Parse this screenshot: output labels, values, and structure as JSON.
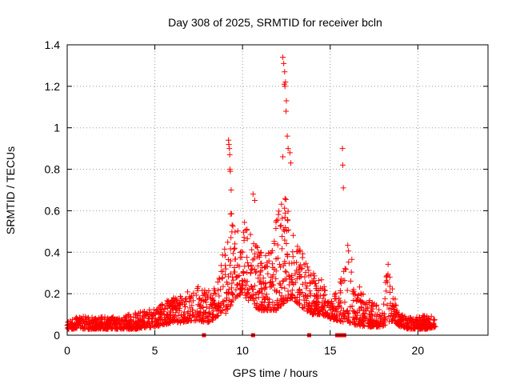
{
  "chart_data": {
    "type": "scatter",
    "title": "Day 308 of 2025, SRMTID for receiver bcln",
    "xlabel": "GPS time / hours",
    "ylabel": "SRMTID / TECUs",
    "xlim": [
      0,
      24
    ],
    "ylim": [
      0,
      1.4
    ],
    "xticks": [
      0,
      5,
      10,
      15,
      20
    ],
    "yticks": [
      0,
      0.2,
      0.4,
      0.6,
      0.8,
      1,
      1.2,
      1.4
    ],
    "ytick_labels": [
      "0",
      "0.2",
      "0.4",
      "0.6",
      "0.8",
      "1",
      "1.2",
      "1.4"
    ],
    "grid": true,
    "marker": "+",
    "color": "#ff0000",
    "envelope": {
      "description": "approximate typical (low) and upper (high) SRMTID envelope vs time; points scattered between",
      "x": [
        0.0,
        1.0,
        2.0,
        3.0,
        4.0,
        5.0,
        5.5,
        6.0,
        6.5,
        7.0,
        7.5,
        8.0,
        8.5,
        9.0,
        9.3,
        9.6,
        10.0,
        10.5,
        11.0,
        11.5,
        12.0,
        12.4,
        12.8,
        13.2,
        13.6,
        14.0,
        14.5,
        15.0,
        15.5,
        15.8,
        16.1,
        16.4,
        17.0,
        17.5,
        18.0,
        18.3,
        18.6,
        19.0,
        19.5,
        20.0,
        20.5,
        21.0
      ],
      "low": [
        0.03,
        0.03,
        0.03,
        0.03,
        0.03,
        0.04,
        0.05,
        0.06,
        0.06,
        0.07,
        0.07,
        0.06,
        0.08,
        0.1,
        0.14,
        0.18,
        0.2,
        0.15,
        0.12,
        0.12,
        0.12,
        0.16,
        0.18,
        0.15,
        0.12,
        0.1,
        0.1,
        0.08,
        0.07,
        0.06,
        0.06,
        0.05,
        0.04,
        0.04,
        0.04,
        0.06,
        0.07,
        0.04,
        0.03,
        0.03,
        0.03,
        0.04
      ],
      "high": [
        0.1,
        0.09,
        0.09,
        0.09,
        0.11,
        0.13,
        0.16,
        0.18,
        0.2,
        0.22,
        0.24,
        0.22,
        0.25,
        0.45,
        0.62,
        0.5,
        0.6,
        0.48,
        0.4,
        0.4,
        0.6,
        0.7,
        0.6,
        0.42,
        0.38,
        0.3,
        0.28,
        0.15,
        0.25,
        0.35,
        0.48,
        0.28,
        0.18,
        0.16,
        0.12,
        0.38,
        0.2,
        0.1,
        0.09,
        0.09,
        0.1,
        0.09
      ]
    },
    "spikes": [
      {
        "x": 9.2,
        "y": 0.94
      },
      {
        "x": 9.22,
        "y": 0.92
      },
      {
        "x": 9.25,
        "y": 0.9
      },
      {
        "x": 9.27,
        "y": 0.87
      },
      {
        "x": 9.28,
        "y": 0.8
      },
      {
        "x": 9.3,
        "y": 0.79
      },
      {
        "x": 9.35,
        "y": 0.7
      },
      {
        "x": 10.6,
        "y": 0.68
      },
      {
        "x": 10.7,
        "y": 0.65
      },
      {
        "x": 12.3,
        "y": 1.34
      },
      {
        "x": 12.35,
        "y": 1.31
      },
      {
        "x": 12.4,
        "y": 1.27
      },
      {
        "x": 12.38,
        "y": 1.21
      },
      {
        "x": 12.42,
        "y": 1.2
      },
      {
        "x": 12.45,
        "y": 1.22
      },
      {
        "x": 12.5,
        "y": 1.13
      },
      {
        "x": 12.48,
        "y": 1.08
      },
      {
        "x": 12.55,
        "y": 0.96
      },
      {
        "x": 12.6,
        "y": 0.9
      },
      {
        "x": 12.7,
        "y": 0.88
      },
      {
        "x": 12.3,
        "y": 0.86
      },
      {
        "x": 12.75,
        "y": 0.83
      },
      {
        "x": 15.7,
        "y": 0.9
      },
      {
        "x": 15.72,
        "y": 0.82
      },
      {
        "x": 15.75,
        "y": 0.71
      }
    ],
    "zero_markers": [
      7.8,
      10.6,
      13.8,
      15.4,
      15.6,
      15.8
    ]
  }
}
